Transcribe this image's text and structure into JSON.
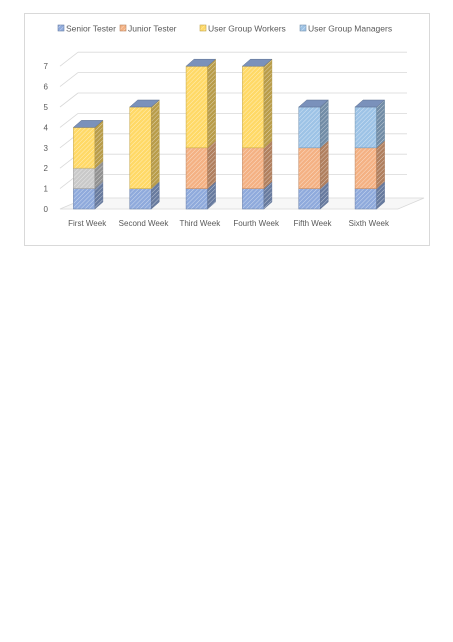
{
  "chart_data": {
    "type": "bar",
    "stacked": true,
    "three_d": true,
    "categories": [
      "First Week",
      "Second Week",
      "Third Week",
      "Fourth Week",
      "Fifth Week",
      "Sixth Week"
    ],
    "series": [
      {
        "name": "Senior Tester",
        "color": "#8faadc",
        "values": [
          1,
          1,
          1,
          1,
          1,
          1
        ]
      },
      {
        "name": "",
        "color": "#c9c9c9",
        "values": [
          1,
          0,
          0,
          0,
          0,
          0
        ]
      },
      {
        "name": "Junior Tester",
        "color": "#f4b183",
        "values": [
          0,
          0,
          2,
          2,
          2,
          2
        ]
      },
      {
        "name": "User Group Workers",
        "color": "#ffd966",
        "values": [
          2,
          4,
          4,
          4,
          0,
          0
        ]
      },
      {
        "name": "User Group Managers",
        "color": "#9dc3e6",
        "values": [
          0,
          0,
          0,
          0,
          2,
          2
        ]
      }
    ],
    "yticks": [
      0,
      1,
      2,
      3,
      4,
      5,
      6,
      7
    ],
    "ylim": [
      0,
      7
    ],
    "grid": true,
    "legend_position": "top",
    "legend": [
      "Senior Tester",
      "Junior Tester",
      "User Group Workers",
      "User Group Managers"
    ]
  }
}
